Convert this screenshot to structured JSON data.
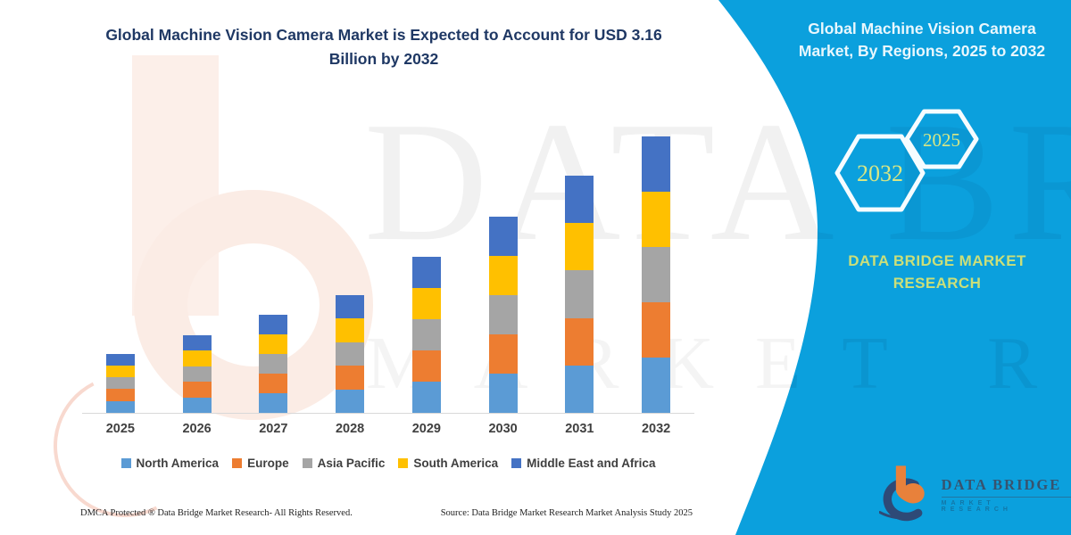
{
  "header": {
    "title_lines": [
      "Global Machine Vision Camera Market is Expected to Account for USD 3.16",
      "Billion by 2032"
    ]
  },
  "right_panel": {
    "title_lines": [
      "Global Machine Vision Camera",
      "Market, By Regions, 2025 to 2032"
    ],
    "hexagon_years": [
      "2032",
      "2025"
    ],
    "brand_lines": [
      "DATA BRIDGE MARKET",
      "RESEARCH"
    ],
    "background_color": "#0ba0dd",
    "logo": {
      "name": "DATA BRIDGE",
      "subtext": "MARKET RESEARCH"
    }
  },
  "watermark": {
    "line1": "DATA BRIDGE",
    "line2": "MARKET RESEARCH",
    "left_logo_shape": "b-logo-watermark"
  },
  "footer": {
    "left": "DMCA Protected ® Data Bridge Market Research-  All Rights Reserved.",
    "right": "Source: Data Bridge Market Research  Market Analysis Study 2025"
  },
  "chart_data": {
    "type": "bar",
    "stacked": true,
    "title": "Global Machine Vision Camera Market is Expected to Account for USD 3.16 Billion by 2032",
    "xlabel": "",
    "ylabel": "",
    "units": "USD Billion",
    "y_axis_visible": false,
    "grid": false,
    "legend_position": "bottom",
    "ylim": [
      0,
      3.3
    ],
    "categories": [
      "2025",
      "2026",
      "2027",
      "2028",
      "2029",
      "2030",
      "2031",
      "2032"
    ],
    "totals_usd_billion": [
      0.68,
      0.89,
      1.12,
      1.35,
      1.79,
      2.25,
      2.71,
      3.16
    ],
    "annotated_final_value": "USD 3.16 Billion by 2032",
    "series": [
      {
        "name": "North America",
        "color": "#5B9BD5",
        "values": [
          0.136,
          0.178,
          0.224,
          0.27,
          0.358,
          0.45,
          0.542,
          0.632
        ]
      },
      {
        "name": "Europe",
        "color": "#ED7D31",
        "values": [
          0.136,
          0.178,
          0.224,
          0.27,
          0.358,
          0.45,
          0.542,
          0.632
        ]
      },
      {
        "name": "Asia Pacific",
        "color": "#A5A5A5",
        "values": [
          0.136,
          0.178,
          0.224,
          0.27,
          0.358,
          0.45,
          0.542,
          0.632
        ]
      },
      {
        "name": "South America",
        "color": "#FFC000",
        "values": [
          0.136,
          0.178,
          0.224,
          0.27,
          0.358,
          0.45,
          0.542,
          0.632
        ]
      },
      {
        "name": "Middle East and Africa",
        "color": "#4472C4",
        "values": [
          0.136,
          0.178,
          0.224,
          0.27,
          0.358,
          0.45,
          0.542,
          0.632
        ]
      }
    ]
  }
}
